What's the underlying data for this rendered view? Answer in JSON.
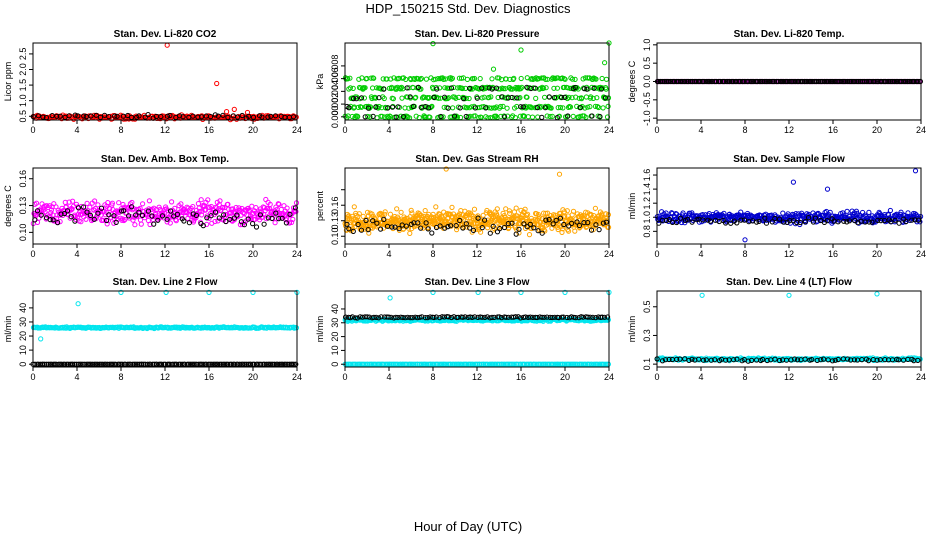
{
  "figure": {
    "title": "HDP_150215  Std. Dev. Diagnostics",
    "xlabel": "Hour of Day (UTC)"
  },
  "chart_data": [
    {
      "type": "scatter",
      "title": "Stan. Dev. Li-820 CO2",
      "ylabel": "Licor ppm",
      "xlim": [
        0,
        24
      ],
      "ylim": [
        0.38,
        2.85
      ],
      "xticks": [
        0,
        4,
        8,
        12,
        16,
        20,
        24
      ],
      "yticks": [
        0.5,
        1.0,
        1.5,
        2.0,
        2.5
      ],
      "ytick_labels": [
        "0.5",
        "1.0",
        "1.5",
        "2.0",
        "2.5"
      ],
      "ytick_rotate": true,
      "grid": false,
      "series": [
        {
          "color": "#ff0000",
          "base": 0.47,
          "spread": 0.09,
          "count": 260,
          "outliers": [
            [
              12.2,
              2.78
            ],
            [
              16.7,
              1.55
            ],
            [
              17.6,
              0.65
            ],
            [
              18.3,
              0.72
            ],
            [
              19.5,
              0.62
            ]
          ]
        },
        {
          "color": "#000000",
          "base": 0.5,
          "spread": 0.07,
          "count": 60,
          "outliers": []
        }
      ]
    },
    {
      "type": "scatter",
      "title": "Stan. Dev. Li-820 Pressure",
      "ylabel": "kPa",
      "xlim": [
        0,
        24
      ],
      "ylim": [
        -0.0005,
        0.0116
      ],
      "xticks": [
        0,
        4,
        8,
        12,
        16,
        20,
        24
      ],
      "yticks": [
        0.0,
        0.002,
        0.004,
        0.006,
        0.008
      ],
      "ytick_labels": [
        "0.000",
        "0.002",
        "0.004",
        "0.006",
        "0.008"
      ],
      "ytick_rotate": true,
      "grid": false,
      "series": [
        {
          "color": "#00cc00",
          "levels": [
            0.0,
            0.0015,
            0.003,
            0.0045,
            0.006
          ],
          "count": 520,
          "outliers": [
            [
              8.0,
              0.0115
            ],
            [
              16.0,
              0.0105
            ],
            [
              23.6,
              0.0085
            ],
            [
              24.0,
              0.0116
            ],
            [
              13.5,
              0.0075
            ]
          ]
        },
        {
          "color": "#000000",
          "levels": [
            0.0,
            0.0015,
            0.003,
            0.0045
          ],
          "count": 70,
          "outliers": []
        }
      ]
    },
    {
      "type": "scatter",
      "title": "Stan. Dev. Li-820 Temp.",
      "ylabel": "degrees C",
      "xlim": [
        0,
        24
      ],
      "ylim": [
        -1.05,
        1.05
      ],
      "xticks": [
        0,
        4,
        8,
        12,
        16,
        20,
        24
      ],
      "yticks": [
        -1.0,
        -0.5,
        0.0,
        0.5,
        1.0
      ],
      "ytick_labels": [
        "-1.0",
        "-0.5",
        "0.0",
        "0.5",
        "1.0"
      ],
      "ytick_rotate": true,
      "grid": false,
      "series": [
        {
          "color": "#ff00ff",
          "base": 0.0,
          "spread": 0.0,
          "count": 200,
          "outliers": []
        },
        {
          "color": "#000000",
          "base": 0.0,
          "spread": 0.0,
          "count": 200,
          "outliers": []
        }
      ]
    },
    {
      "type": "scatter",
      "title": "Stan. Dev. Amb. Box Temp.",
      "ylabel": "degrees C",
      "xlim": [
        0,
        24
      ],
      "ylim": [
        0.087,
        0.172
      ],
      "xticks": [
        0,
        4,
        8,
        12,
        16,
        20,
        24
      ],
      "yticks": [
        0.1,
        0.13,
        0.16
      ],
      "ytick_labels": [
        "0.10",
        "0.13",
        "0.16"
      ],
      "ytick_rotate": true,
      "grid": false,
      "series": [
        {
          "color": "#ff00ff",
          "base": 0.122,
          "spread": 0.018,
          "count": 420,
          "outliers": []
        },
        {
          "color": "#000000",
          "base": 0.118,
          "spread": 0.015,
          "count": 70,
          "outliers": []
        }
      ]
    },
    {
      "type": "scatter",
      "title": "Stan. Dev. Gas Stream RH",
      "ylabel": "percent",
      "xlim": [
        0,
        24
      ],
      "ylim": [
        0.085,
        0.232
      ],
      "xticks": [
        0,
        4,
        8,
        12,
        16,
        20,
        24
      ],
      "yticks": [
        0.1,
        0.13,
        0.16,
        0.19
      ],
      "ytick_labels": [
        "0.10",
        "0.13",
        "0.16",
        ""
      ],
      "ytick_rotate": true,
      "grid": false,
      "series": [
        {
          "color": "#ffa500",
          "base": 0.13,
          "spread": 0.03,
          "count": 600,
          "outliers": [
            [
              9.2,
              0.23
            ],
            [
              19.5,
              0.22
            ]
          ]
        },
        {
          "color": "#000000",
          "base": 0.12,
          "spread": 0.02,
          "count": 70,
          "outliers": []
        }
      ]
    },
    {
      "type": "scatter",
      "title": "Stan. Dev. Sample Flow",
      "ylabel": "ml/min",
      "xlim": [
        0,
        24
      ],
      "ylim": [
        0.62,
        1.7
      ],
      "xticks": [
        0,
        4,
        8,
        12,
        16,
        20,
        24
      ],
      "yticks": [
        0.8,
        1.0,
        1.2,
        1.4,
        1.6
      ],
      "ytick_labels": [
        "0.8",
        "1.0",
        "1.2",
        "1.4",
        "1.6"
      ],
      "ytick_rotate": true,
      "grid": false,
      "series": [
        {
          "color": "#0000cc",
          "base": 1.0,
          "spread": 0.11,
          "count": 420,
          "outliers": [
            [
              8.0,
              0.68
            ],
            [
              12.4,
              1.5
            ],
            [
              15.5,
              1.4
            ],
            [
              23.5,
              1.66
            ]
          ]
        },
        {
          "color": "#000000",
          "base": 0.95,
          "spread": 0.07,
          "count": 70,
          "outliers": []
        }
      ]
    },
    {
      "type": "scatter",
      "title": "Stan. Dev. Line 2 Flow",
      "ylabel": "ml/min",
      "xlim": [
        0,
        24
      ],
      "ylim": [
        -2,
        52
      ],
      "xticks": [
        0,
        4,
        8,
        12,
        16,
        20,
        24
      ],
      "yticks": [
        0,
        10,
        20,
        30,
        40
      ],
      "ytick_labels": [
        "0",
        "10",
        "20",
        "30",
        "40"
      ],
      "ytick_rotate": true,
      "grid": false,
      "series": [
        {
          "color": "#00e5ee",
          "base": 26,
          "spread": 0.8,
          "count": 260,
          "outliers": [
            [
              0.7,
              18
            ],
            [
              4.1,
              43
            ],
            [
              8.0,
              51
            ],
            [
              12.1,
              51
            ],
            [
              16.0,
              51
            ],
            [
              20.0,
              51
            ],
            [
              24.0,
              51
            ]
          ]
        },
        {
          "color": "#000000",
          "base": 0,
          "spread": 0.0,
          "count": 160,
          "outliers": []
        }
      ]
    },
    {
      "type": "scatter",
      "title": "Stan. Dev. Line 3 Flow",
      "ylabel": "ml/min",
      "xlim": [
        0,
        24
      ],
      "ylim": [
        -2,
        53
      ],
      "xticks": [
        0,
        4,
        8,
        12,
        16,
        20,
        24
      ],
      "yticks": [
        0,
        10,
        20,
        30,
        40
      ],
      "ytick_labels": [
        "0",
        "10",
        "20",
        "30",
        "40"
      ],
      "ytick_rotate": true,
      "grid": false,
      "series": [
        {
          "color": "#00e5ee",
          "base": 32,
          "spread": 1.2,
          "count": 320,
          "outliers": [
            [
              4.1,
              48
            ],
            [
              8.0,
              52
            ],
            [
              12.1,
              52
            ],
            [
              16.0,
              52
            ],
            [
              20.0,
              52
            ],
            [
              24.0,
              52
            ]
          ]
        },
        {
          "color": "#000000",
          "base": 34,
          "spread": 0.7,
          "count": 110,
          "outliers": []
        },
        {
          "color": "#00e5ee",
          "base": 0,
          "spread": 0.0,
          "count": 200,
          "outliers": []
        }
      ]
    },
    {
      "type": "scatter",
      "title": "Stan. Dev. Line 4 (LT) Flow",
      "ylabel": "ml/min",
      "xlim": [
        0,
        24
      ],
      "ylim": [
        0.08,
        0.61
      ],
      "xticks": [
        0,
        4,
        8,
        12,
        16,
        20,
        24
      ],
      "yticks": [
        0.1,
        0.3,
        0.5
      ],
      "ytick_labels": [
        "0.1",
        "0.3",
        "0.5"
      ],
      "ytick_rotate": true,
      "grid": false,
      "series": [
        {
          "color": "#00e5ee",
          "base": 0.135,
          "spread": 0.012,
          "count": 300,
          "outliers": [
            [
              4.1,
              0.58
            ],
            [
              12.0,
              0.58
            ],
            [
              20.0,
              0.59
            ]
          ]
        },
        {
          "color": "#000000",
          "base": 0.13,
          "spread": 0.012,
          "count": 70,
          "outliers": []
        }
      ]
    }
  ]
}
